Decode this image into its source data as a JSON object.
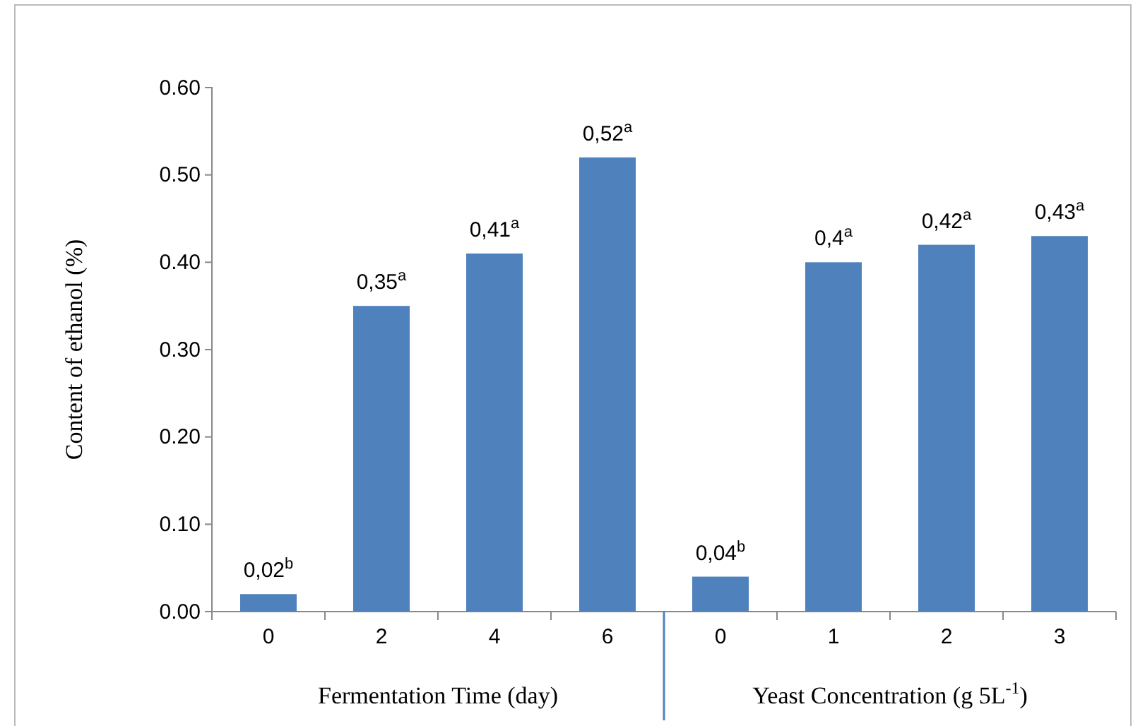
{
  "chart_data": {
    "type": "bar",
    "ylabel": "Content of ethanol (%)",
    "categories": [
      "0",
      "2",
      "4",
      "6",
      "0",
      "1",
      "2",
      "3"
    ],
    "values": [
      0.02,
      0.35,
      0.41,
      0.52,
      0.04,
      0.4,
      0.42,
      0.43
    ],
    "value_labels": [
      "0,02$^{b}$",
      "0,35$^{a}$",
      "0,41$^{a}$",
      "0,52$^{a}$",
      "0,04$^{b}$",
      "0,4$^{a}$",
      "0,42$^{a}$",
      "0,43$^{a}$"
    ],
    "color": "#4f81bd",
    "ylim": [
      0,
      0.6
    ],
    "yticks": [
      {
        "value": 0,
        "label": "0.00"
      },
      {
        "value": 0.1,
        "label": "0.10"
      },
      {
        "value": 0.2,
        "label": "0.20"
      },
      {
        "value": 0.3,
        "label": "0.30"
      },
      {
        "value": 0.4,
        "label": "0.40"
      },
      {
        "value": 0.5,
        "label": "0.50"
      },
      {
        "value": 0.6,
        "label": "0.60"
      }
    ],
    "annotations": [
      "Fermentation Time (day)",
      "Yeast Concentration (g 5L$^{-1}$)"
    ],
    "grid": false
  }
}
